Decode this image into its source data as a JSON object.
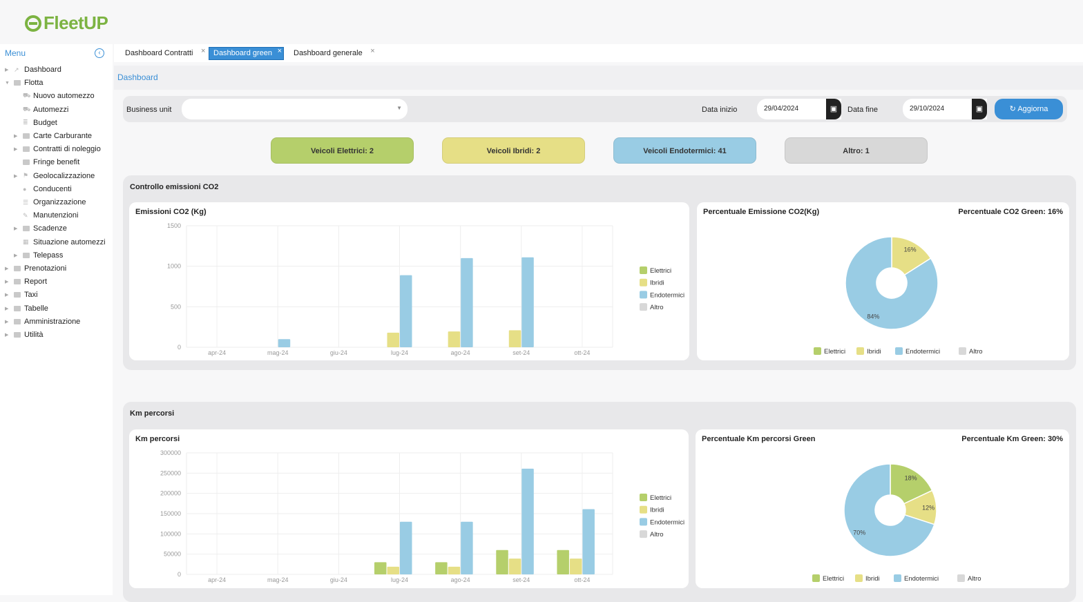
{
  "app": {
    "logo_text": "FleetUP"
  },
  "sidebar": {
    "menu_label": "Menu",
    "items": [
      {
        "label": "Dashboard",
        "level": 0,
        "expander": "right",
        "icon": "chart-line-icon"
      },
      {
        "label": "Flotta",
        "level": 0,
        "expander": "down",
        "icon": "folder-icon"
      },
      {
        "label": "Nuovo automezzo",
        "level": 1,
        "expander": "",
        "icon": "car-icon"
      },
      {
        "label": "Automezzi",
        "level": 1,
        "expander": "",
        "icon": "car-icon"
      },
      {
        "label": "Budget",
        "level": 1,
        "expander": "",
        "icon": "coins-icon"
      },
      {
        "label": "Carte Carburante",
        "level": 1,
        "expander": "right",
        "icon": "folder-icon"
      },
      {
        "label": "Contratti di noleggio",
        "level": 1,
        "expander": "right",
        "icon": "folder-icon"
      },
      {
        "label": "Fringe benefit",
        "level": 1,
        "expander": "",
        "icon": "folder-icon"
      },
      {
        "label": "Geolocalizzazione",
        "level": 1,
        "expander": "right",
        "icon": "signpost-icon"
      },
      {
        "label": "Conducenti",
        "level": 1,
        "expander": "",
        "icon": "users-icon"
      },
      {
        "label": "Organizzazione",
        "level": 1,
        "expander": "",
        "icon": "list-icon"
      },
      {
        "label": "Manutenzioni",
        "level": 1,
        "expander": "",
        "icon": "wrench-icon"
      },
      {
        "label": "Scadenze",
        "level": 1,
        "expander": "right",
        "icon": "folder-icon"
      },
      {
        "label": "Situazione automezzi",
        "level": 1,
        "expander": "",
        "icon": "table-icon"
      },
      {
        "label": "Telepass",
        "level": 1,
        "expander": "right",
        "icon": "folder-icon"
      },
      {
        "label": "Prenotazioni",
        "level": 0,
        "expander": "right",
        "icon": "folder-icon"
      },
      {
        "label": "Report",
        "level": 0,
        "expander": "right",
        "icon": "folder-icon"
      },
      {
        "label": "Taxi",
        "level": 0,
        "expander": "right",
        "icon": "folder-icon"
      },
      {
        "label": "Tabelle",
        "level": 0,
        "expander": "right",
        "icon": "folder-icon"
      },
      {
        "label": "Amministrazione",
        "level": 0,
        "expander": "right",
        "icon": "folder-icon"
      },
      {
        "label": "Utilità",
        "level": 0,
        "expander": "right",
        "icon": "folder-icon"
      }
    ]
  },
  "tabs": [
    {
      "label": "Dashboard Contratti",
      "active": false
    },
    {
      "label": "Dashboard green",
      "active": true
    },
    {
      "label": "Dashboard generale",
      "active": false
    }
  ],
  "breadcrumb": "Dashboard",
  "filters": {
    "business_unit_label": "Business unit",
    "business_unit_value": "",
    "start_label": "Data inizio",
    "start_value": "29/04/2024",
    "end_label": "Data fine",
    "end_value": "29/10/2024",
    "refresh_label": "Aggiorna"
  },
  "badges": [
    {
      "label": "Veicoli Elettrici: 2",
      "color": "#b5cf6b"
    },
    {
      "label": "Veicoli Ibridi: 2",
      "color": "#e6df86"
    },
    {
      "label": "Veicoli Endotermici: 41",
      "color": "#99cce4"
    },
    {
      "label": "Altro: 1",
      "color": "#d8d8d8"
    }
  ],
  "colors": {
    "Elettrici": "#b5cf6b",
    "Ibridi": "#e6df86",
    "Endotermici": "#99cce4",
    "Altro": "#d8d8d8"
  },
  "sections": [
    {
      "title": "Controllo emissioni CO2",
      "bar_title": "Emissioni CO2 (Kg)",
      "pie_title": "Percentuale Emissione CO2(Kg)",
      "pie_subtitle": "Percentuale CO2 Green: 16%"
    },
    {
      "title": "Km percorsi",
      "bar_title": "Km percorsi",
      "pie_title": "Percentuale Km percorsi Green",
      "pie_subtitle": "Percentuale Km Green: 30%"
    }
  ],
  "chart_data": [
    {
      "type": "bar",
      "title": "Emissioni CO2 (Kg)",
      "categories": [
        "apr-24",
        "mag-24",
        "giu-24",
        "lug-24",
        "ago-24",
        "set-24",
        "ott-24"
      ],
      "ylim": [
        0,
        1500
      ],
      "yticks": [
        0,
        500,
        1000,
        1500
      ],
      "grid": true,
      "legend": "right",
      "series": [
        {
          "name": "Elettrici",
          "values": [
            0,
            0,
            0,
            0,
            0,
            0,
            0
          ]
        },
        {
          "name": "Ibridi",
          "values": [
            0,
            0,
            0,
            180,
            195,
            210,
            0
          ]
        },
        {
          "name": "Endotermici",
          "values": [
            0,
            100,
            0,
            890,
            1100,
            1110,
            0
          ]
        },
        {
          "name": "Altro",
          "values": [
            0,
            0,
            0,
            0,
            0,
            0,
            0
          ]
        }
      ]
    },
    {
      "type": "pie",
      "title": "Percentuale Emissione CO2(Kg)",
      "legend": "bottom",
      "donut": true,
      "labels": [
        "Elettrici",
        "Ibridi",
        "Endotermici",
        "Altro"
      ],
      "values": [
        0,
        16,
        84,
        0
      ],
      "value_labels": [
        "",
        "16%",
        "84%",
        ""
      ]
    },
    {
      "type": "bar",
      "title": "Km percorsi",
      "categories": [
        "apr-24",
        "mag-24",
        "giu-24",
        "lug-24",
        "ago-24",
        "set-24",
        "ott-24"
      ],
      "ylim": [
        0,
        300000
      ],
      "yticks": [
        0,
        50000,
        100000,
        150000,
        200000,
        250000,
        300000
      ],
      "grid": true,
      "legend": "right",
      "series": [
        {
          "name": "Elettrici",
          "values": [
            0,
            0,
            0,
            30000,
            30000,
            60000,
            60000
          ]
        },
        {
          "name": "Ibridi",
          "values": [
            0,
            0,
            0,
            19000,
            19000,
            39000,
            39000
          ]
        },
        {
          "name": "Endotermici",
          "values": [
            0,
            0,
            0,
            130000,
            130000,
            261000,
            161000
          ]
        },
        {
          "name": "Altro",
          "values": [
            0,
            0,
            0,
            0,
            0,
            0,
            0
          ]
        }
      ]
    },
    {
      "type": "pie",
      "title": "Percentuale Km percorsi Green",
      "legend": "bottom",
      "donut": true,
      "labels": [
        "Elettrici",
        "Ibridi",
        "Endotermici",
        "Altro"
      ],
      "values": [
        18,
        12,
        70,
        0
      ],
      "value_labels": [
        "18%",
        "12%",
        "70%",
        ""
      ]
    }
  ]
}
